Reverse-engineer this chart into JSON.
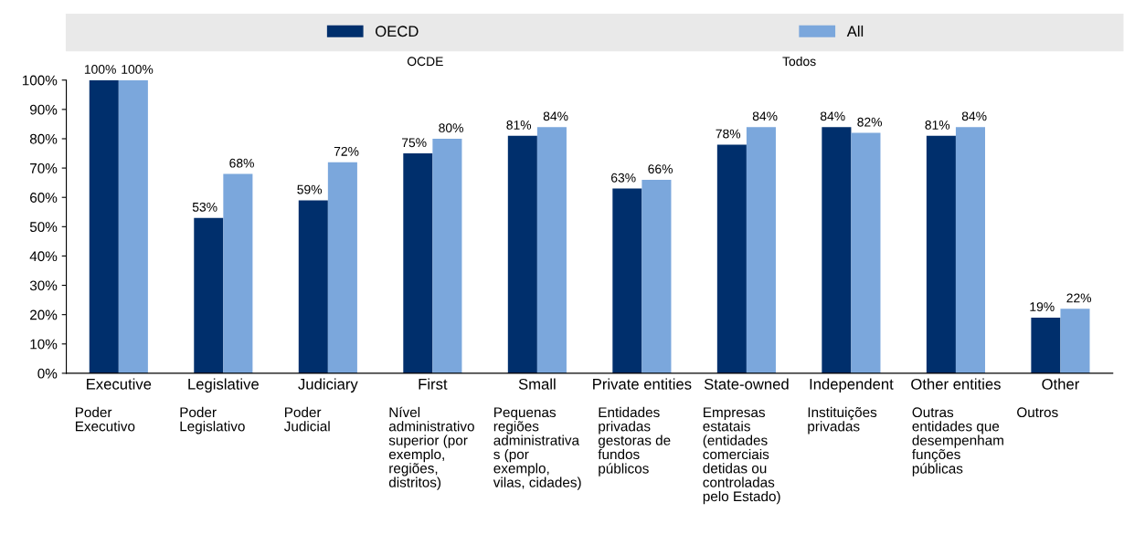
{
  "chart_data": {
    "type": "bar",
    "categories": [
      "Executive\nPoder\nExecutivo",
      "Legislative\nPoder\nLegislativo",
      "Judiciary\nPoder\nJudicial",
      "First\nNível\nadministrativo\nsuperior (por\nexemplo,\nregiões,\ndistritos)",
      "Small\nPequenas\nregiões\nadministrativa\ns (por\nexemplo,\nvilas, cidades)",
      "Private entities\nEntidades\nprivadas\ngestoras de\nfundos\npúblicos",
      "State-owned\nEmpresas\nestatais\n(entidades\ncomerciais\ndetidas ou\ncontroladas\npelo Estado)",
      "Independent\nInstituições\nprivadas",
      "Other entities\nOutras\nentidades que\ndesempenham\nfunções\npúblicas",
      "Other\nOutros"
    ],
    "series": [
      {
        "name": "OECD",
        "color": "#002f6c",
        "values": [
          100,
          53,
          59,
          75,
          81,
          63,
          78,
          84,
          81,
          19
        ],
        "value_labels": [
          "100%",
          "53%",
          "59%",
          "75%",
          "81%",
          "63%",
          "78%",
          "84%",
          "81%",
          "19%"
        ]
      },
      {
        "name": "All",
        "color": "#7ba7dc",
        "values": [
          100,
          68,
          72,
          80,
          84,
          66,
          84,
          82,
          84,
          22
        ],
        "value_labels": [
          "100%",
          "68%",
          "72%",
          "80%",
          "84%",
          "66%",
          "84%",
          "82%",
          "84%",
          "22%"
        ]
      }
    ],
    "ylim": [
      0,
      100
    ],
    "yticks": [
      {
        "value": 0,
        "label": "0%"
      },
      {
        "value": 10,
        "label": "10%"
      },
      {
        "value": 20,
        "label": "20%"
      },
      {
        "value": 30,
        "label": "30%"
      },
      {
        "value": 40,
        "label": "40%"
      },
      {
        "value": 50,
        "label": "50%"
      },
      {
        "value": 60,
        "label": "60%"
      },
      {
        "value": 70,
        "label": "70%"
      },
      {
        "value": 80,
        "label": "80%"
      },
      {
        "value": 90,
        "label": "90%"
      },
      {
        "value": 100,
        "label": "100%"
      }
    ],
    "legend": "top",
    "annotations": [
      "OCDE",
      "Todos"
    ]
  }
}
